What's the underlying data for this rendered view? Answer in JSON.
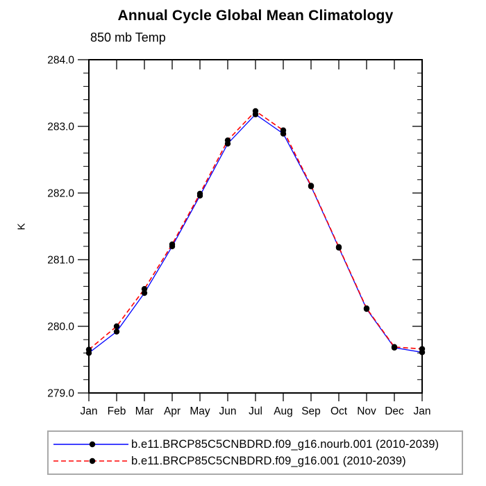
{
  "title": "Annual Cycle Global Mean Climatology",
  "subtitle": "850 mb Temp",
  "ylabel": "K",
  "chart_data": {
    "type": "line",
    "categories": [
      "Jan",
      "Feb",
      "Mar",
      "Apr",
      "May",
      "Jun",
      "Jul",
      "Aug",
      "Sep",
      "Oct",
      "Nov",
      "Dec",
      "Jan"
    ],
    "ylim": [
      279.0,
      284.0
    ],
    "ytick_labels": [
      "279.0",
      "280.0",
      "281.0",
      "282.0",
      "283.0",
      "284.0"
    ],
    "ytick_minor_step": 0.2,
    "grid": false,
    "legend_position": "bottom",
    "marker": "filled-circle",
    "marker_color": "#000000",
    "axis_color": "#000000",
    "series": [
      {
        "name": "b.e11.BRCP85C5CNBDRD.f09_g16.nourb.001 (2010-2039)",
        "color": "#0000ff",
        "line_style": "solid",
        "values": [
          279.6,
          279.92,
          280.5,
          281.2,
          281.96,
          282.74,
          283.18,
          282.89,
          282.1,
          281.18,
          280.26,
          279.68,
          279.61
        ]
      },
      {
        "name": "b.e11.BRCP85C5CNBDRD.f09_g16.001 (2010-2039)",
        "color": "#ff0000",
        "line_style": "dashed",
        "values": [
          279.65,
          280.0,
          280.56,
          281.23,
          281.99,
          282.79,
          283.23,
          282.94,
          282.11,
          281.19,
          280.27,
          279.69,
          279.66
        ]
      }
    ]
  }
}
